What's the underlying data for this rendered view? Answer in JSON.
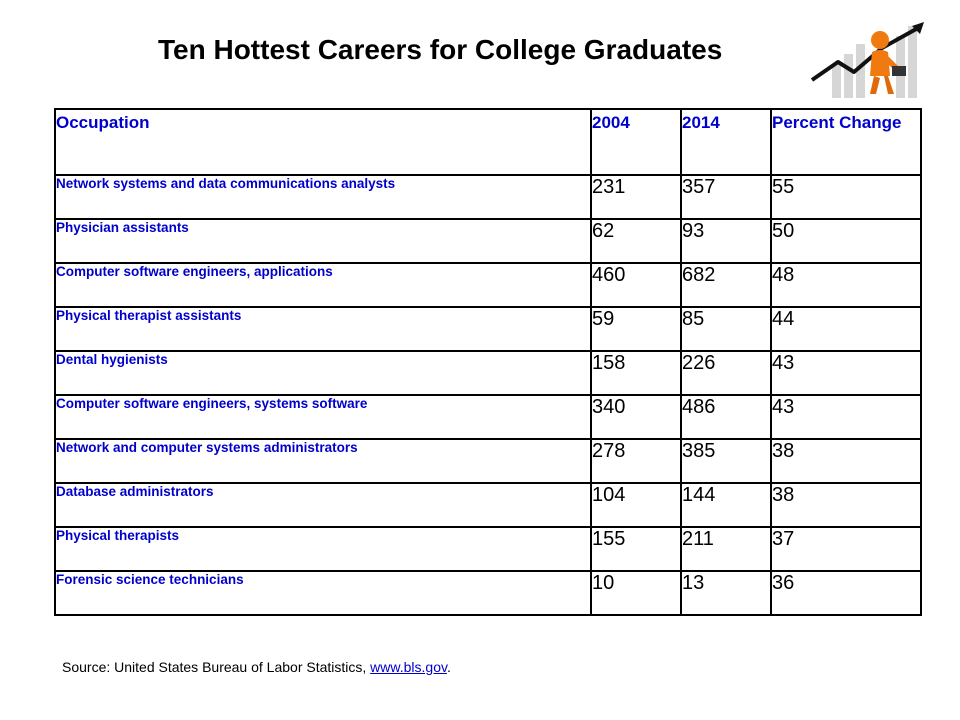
{
  "title": "Ten Hottest Careers for College Graduates",
  "table": {
    "headers": [
      "Occupation",
      "2004",
      "2014",
      "Percent Change"
    ],
    "rows": [
      {
        "occupation": "Network systems and data communications analysts",
        "y2004": "231",
        "y2014": "357",
        "pct": "55"
      },
      {
        "occupation": "Physician assistants",
        "y2004": "62",
        "y2014": "93",
        "pct": "50"
      },
      {
        "occupation": "Computer software engineers, applications",
        "y2004": "460",
        "y2014": "682",
        "pct": "48"
      },
      {
        "occupation": "Physical therapist assistants",
        "y2004": "59",
        "y2014": "85",
        "pct": "44"
      },
      {
        "occupation": "Dental hygienists",
        "y2004": "158",
        "y2014": "226",
        "pct": "43"
      },
      {
        "occupation": "Computer software engineers, systems software",
        "y2004": "340",
        "y2014": "486",
        "pct": "43"
      },
      {
        "occupation": "Network and computer systems administrators",
        "y2004": "278",
        "y2014": "385",
        "pct": "38"
      },
      {
        "occupation": "Database administrators",
        "y2004": "104",
        "y2014": "144",
        "pct": "38"
      },
      {
        "occupation": "Physical therapists",
        "y2004": "155",
        "y2014": "211",
        "pct": "37"
      },
      {
        "occupation": "Forensic science technicians",
        "y2004": "10",
        "y2014": "13",
        "pct": "36"
      }
    ]
  },
  "source": {
    "text": "Source: United States Bureau of Labor Statistics, ",
    "link": "www.bls.gov",
    "suffix": "."
  },
  "colors": {
    "header_text": "#0000cc",
    "occupation_text": "#0000cc",
    "clipart_figure": "#f07a10"
  },
  "icons": {
    "clipart": "growth-chart-person-icon"
  }
}
